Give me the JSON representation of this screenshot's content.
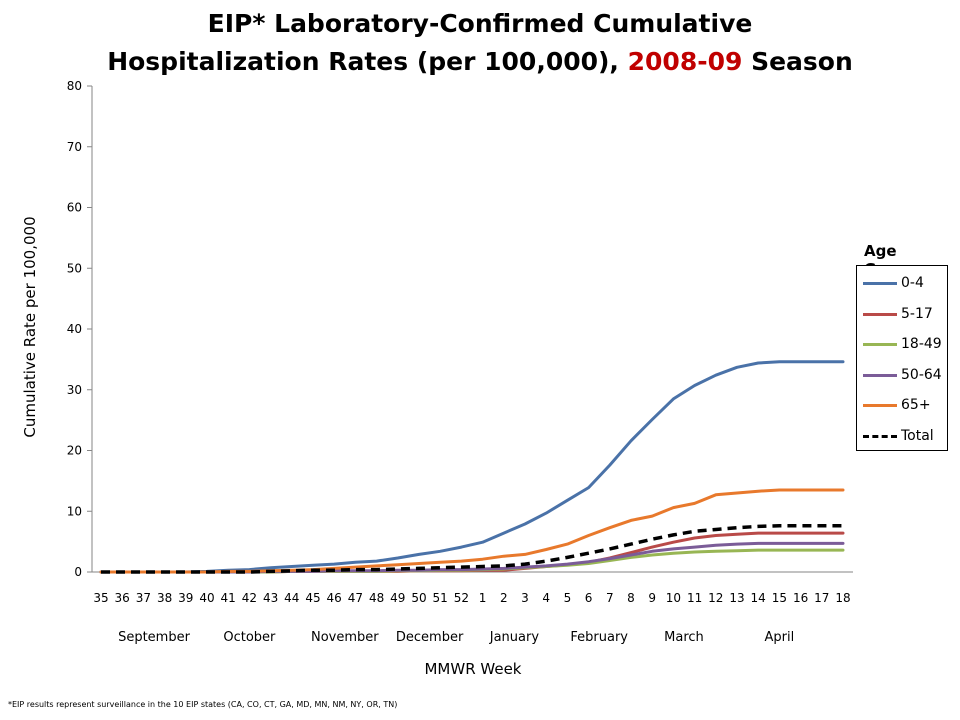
{
  "title": {
    "line1": "EIP* Laboratory-Confirmed Cumulative",
    "line2_prefix": "Hospitalization Rates (per 100,000), ",
    "line2_highlight": "2008-09",
    "line2_suffix": " Season"
  },
  "footnote": "*EIP results represent surveillance in the 10 EIP states (CA, CO, CT, GA, MD, MN, NM, NY, OR, TN)",
  "colors": {
    "highlight": "#c00000"
  },
  "chart_data": {
    "type": "line",
    "xlabel": "MMWR Week",
    "ylabel": "Cumulative Rate per 100,000",
    "ylim": [
      0,
      80
    ],
    "yticks": [
      0,
      10,
      20,
      30,
      40,
      50,
      60,
      70,
      80
    ],
    "grid": false,
    "legend_position": "right",
    "legend_title": "Age Groups",
    "categories": [
      "35",
      "36",
      "37",
      "38",
      "39",
      "40",
      "41",
      "42",
      "43",
      "44",
      "45",
      "46",
      "47",
      "48",
      "49",
      "50",
      "51",
      "52",
      "1",
      "2",
      "3",
      "4",
      "5",
      "6",
      "7",
      "8",
      "9",
      "10",
      "11",
      "12",
      "13",
      "14",
      "15",
      "16",
      "17",
      "18"
    ],
    "month_labels": [
      {
        "label": "September",
        "center_week": "37.5"
      },
      {
        "label": "October",
        "center_week": "42"
      },
      {
        "label": "November",
        "center_week": "46.5"
      },
      {
        "label": "December",
        "center_week": "50.5"
      },
      {
        "label": "January",
        "center_week": "2.5"
      },
      {
        "label": "February",
        "center_week": "6.5"
      },
      {
        "label": "March",
        "center_week": "10.5"
      },
      {
        "label": "April",
        "center_week": "15"
      }
    ],
    "series": [
      {
        "name": "0-4",
        "color": "#4a72a8",
        "dash": false,
        "values": [
          0,
          0,
          0,
          0,
          0,
          0.1,
          0.3,
          0.4,
          0.7,
          0.9,
          1.1,
          1.3,
          1.6,
          1.8,
          2.3,
          2.9,
          3.4,
          4.1,
          4.9,
          6.4,
          7.9,
          9.7,
          11.8,
          13.9,
          17.6,
          21.6,
          25.1,
          28.5,
          30.7,
          32.4,
          33.7,
          34.4,
          34.6,
          34.6,
          34.6,
          34.6
        ]
      },
      {
        "name": "5-17",
        "color": "#b94a48",
        "dash": false,
        "values": [
          0,
          0,
          0,
          0,
          0,
          0,
          0,
          0,
          0,
          0.1,
          0.1,
          0.1,
          0.1,
          0.1,
          0.1,
          0.2,
          0.2,
          0.2,
          0.3,
          0.3,
          0.6,
          0.9,
          1.2,
          1.6,
          2.3,
          3.2,
          4.1,
          4.9,
          5.6,
          6.0,
          6.2,
          6.4,
          6.4,
          6.4,
          6.4,
          6.4
        ]
      },
      {
        "name": "18-49",
        "color": "#98b654",
        "dash": false,
        "values": [
          0,
          0,
          0,
          0,
          0,
          0,
          0,
          0,
          0,
          0.1,
          0.1,
          0.1,
          0.1,
          0.1,
          0.2,
          0.2,
          0.3,
          0.3,
          0.4,
          0.5,
          0.7,
          0.9,
          1.1,
          1.4,
          1.9,
          2.4,
          2.8,
          3.1,
          3.3,
          3.4,
          3.5,
          3.6,
          3.6,
          3.6,
          3.6,
          3.6
        ]
      },
      {
        "name": "50-64",
        "color": "#7b5c98",
        "dash": false,
        "values": [
          0,
          0,
          0,
          0,
          0,
          0,
          0,
          0,
          0.1,
          0.1,
          0.1,
          0.2,
          0.2,
          0.2,
          0.3,
          0.3,
          0.4,
          0.4,
          0.5,
          0.6,
          0.8,
          1.0,
          1.3,
          1.7,
          2.2,
          2.8,
          3.4,
          3.8,
          4.1,
          4.4,
          4.6,
          4.7,
          4.7,
          4.7,
          4.7,
          4.7
        ]
      },
      {
        "name": "65+",
        "color": "#e8792c",
        "dash": false,
        "values": [
          0,
          0,
          0,
          0,
          0,
          0,
          0.1,
          0.1,
          0.2,
          0.3,
          0.4,
          0.6,
          0.8,
          1.0,
          1.2,
          1.4,
          1.6,
          1.8,
          2.1,
          2.6,
          2.9,
          3.7,
          4.6,
          6.0,
          7.3,
          8.5,
          9.2,
          10.6,
          11.3,
          12.7,
          13.0,
          13.3,
          13.5,
          13.5,
          13.5,
          13.5
        ]
      },
      {
        "name": "Total",
        "color": "#000000",
        "dash": true,
        "values": [
          0,
          0,
          0,
          0,
          0,
          0,
          0,
          0,
          0.1,
          0.2,
          0.3,
          0.3,
          0.4,
          0.4,
          0.5,
          0.6,
          0.7,
          0.8,
          0.9,
          1.0,
          1.3,
          1.8,
          2.4,
          3.1,
          3.8,
          4.6,
          5.4,
          6.1,
          6.7,
          7.0,
          7.3,
          7.5,
          7.6,
          7.6,
          7.6,
          7.6
        ]
      }
    ]
  }
}
